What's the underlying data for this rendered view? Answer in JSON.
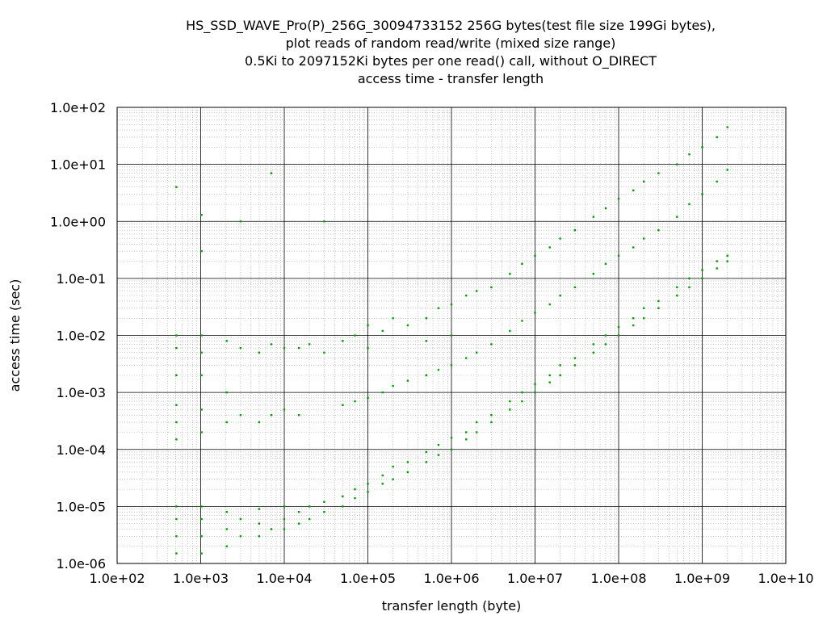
{
  "chart_data": {
    "type": "scatter",
    "title_lines": [
      "HS_SSD_WAVE_Pro(P)_256G_30094733152 256G bytes(test file size 199Gi bytes),",
      "plot reads of random read/write (mixed size range)",
      "0.5Ki to 2097152Ki bytes per one read() call, without O_DIRECT",
      "access time - transfer length"
    ],
    "xlabel": "transfer length (byte)",
    "ylabel": "access time (sec)",
    "xscale": "log",
    "yscale": "log",
    "xlim": [
      100,
      10000000000
    ],
    "ylim": [
      1e-06,
      100
    ],
    "x_ticks": [
      {
        "value": 100,
        "label": "1.0e+02"
      },
      {
        "value": 1000,
        "label": "1.0e+03"
      },
      {
        "value": 10000,
        "label": "1.0e+04"
      },
      {
        "value": 100000,
        "label": "1.0e+05"
      },
      {
        "value": 1000000,
        "label": "1.0e+06"
      },
      {
        "value": 10000000,
        "label": "1.0e+07"
      },
      {
        "value": 100000000,
        "label": "1.0e+08"
      },
      {
        "value": 1000000000,
        "label": "1.0e+09"
      },
      {
        "value": 10000000000,
        "label": "1.0e+10"
      }
    ],
    "y_ticks": [
      {
        "value": 1e-06,
        "label": "1.0e-06"
      },
      {
        "value": 1e-05,
        "label": "1.0e-05"
      },
      {
        "value": 0.0001,
        "label": "1.0e-04"
      },
      {
        "value": 0.001,
        "label": "1.0e-03"
      },
      {
        "value": 0.01,
        "label": "1.0e-02"
      },
      {
        "value": 0.1,
        "label": "1.0e-01"
      },
      {
        "value": 1,
        "label": "1.0e+00"
      },
      {
        "value": 10,
        "label": "1.0e+01"
      },
      {
        "value": 100,
        "label": "1.0e+02"
      }
    ],
    "grid": true,
    "minor_grid": true,
    "point_color": "#00a000",
    "series": [
      {
        "values": [
          [
            512,
            1.5e-06
          ],
          [
            512,
            3e-06
          ],
          [
            512,
            6e-06
          ],
          [
            512,
            1e-05
          ],
          [
            512,
            0.00015
          ],
          [
            512,
            0.0003
          ],
          [
            512,
            0.0006
          ],
          [
            512,
            0.002
          ],
          [
            512,
            0.006
          ],
          [
            512,
            0.01
          ],
          [
            512,
            4.0
          ],
          [
            1024,
            1.5e-06
          ],
          [
            1024,
            3e-06
          ],
          [
            1024,
            6e-06
          ],
          [
            1024,
            1e-05
          ],
          [
            1024,
            0.0002
          ],
          [
            1024,
            0.0005
          ],
          [
            1024,
            0.002
          ],
          [
            1024,
            0.005
          ],
          [
            1024,
            0.01
          ],
          [
            1024,
            1.3
          ],
          [
            1024,
            0.3
          ],
          [
            2048,
            2e-06
          ],
          [
            2048,
            4e-06
          ],
          [
            2048,
            8e-06
          ],
          [
            2048,
            0.0003
          ],
          [
            2048,
            0.001
          ],
          [
            2048,
            0.008
          ],
          [
            3000,
            3e-06
          ],
          [
            3000,
            6e-06
          ],
          [
            3000,
            0.0004
          ],
          [
            3000,
            0.006
          ],
          [
            3000,
            1.0
          ],
          [
            5000,
            3e-06
          ],
          [
            5000,
            5e-06
          ],
          [
            5000,
            9e-06
          ],
          [
            5000,
            0.0003
          ],
          [
            5000,
            0.005
          ],
          [
            7000,
            4e-06
          ],
          [
            7000,
            0.0004
          ],
          [
            7000,
            0.007
          ],
          [
            7000,
            7.0
          ],
          [
            10000,
            4e-06
          ],
          [
            10000,
            6e-06
          ],
          [
            10000,
            1e-05
          ],
          [
            10000,
            0.0005
          ],
          [
            10000,
            0.006
          ],
          [
            15000,
            5e-06
          ],
          [
            15000,
            8e-06
          ],
          [
            15000,
            0.006
          ],
          [
            15000,
            0.0004
          ],
          [
            20000,
            6e-06
          ],
          [
            20000,
            1e-05
          ],
          [
            20000,
            0.007
          ],
          [
            30000,
            8e-06
          ],
          [
            30000,
            1.2e-05
          ],
          [
            30000,
            0.005
          ],
          [
            30000,
            1.0
          ],
          [
            50000,
            1e-05
          ],
          [
            50000,
            1.5e-05
          ],
          [
            50000,
            0.0006
          ],
          [
            50000,
            0.008
          ],
          [
            70000,
            1.4e-05
          ],
          [
            70000,
            2e-05
          ],
          [
            70000,
            0.0007
          ],
          [
            70000,
            0.01
          ],
          [
            100000,
            1.8e-05
          ],
          [
            100000,
            2.5e-05
          ],
          [
            100000,
            0.0008
          ],
          [
            100000,
            0.015
          ],
          [
            100000,
            0.006
          ],
          [
            150000,
            2.5e-05
          ],
          [
            150000,
            3.5e-05
          ],
          [
            150000,
            0.001
          ],
          [
            150000,
            0.012
          ],
          [
            200000,
            3e-05
          ],
          [
            200000,
            5e-05
          ],
          [
            200000,
            0.0013
          ],
          [
            200000,
            0.02
          ],
          [
            300000,
            4e-05
          ],
          [
            300000,
            6e-05
          ],
          [
            300000,
            0.0016
          ],
          [
            300000,
            0.015
          ],
          [
            500000,
            6e-05
          ],
          [
            500000,
            9e-05
          ],
          [
            500000,
            0.002
          ],
          [
            500000,
            0.02
          ],
          [
            500000,
            0.008
          ],
          [
            700000,
            8e-05
          ],
          [
            700000,
            0.00012
          ],
          [
            700000,
            0.0025
          ],
          [
            700000,
            0.03
          ],
          [
            1000000,
            0.0001
          ],
          [
            1000000,
            0.00016
          ],
          [
            1000000,
            0.003
          ],
          [
            1000000,
            0.035
          ],
          [
            1000000,
            0.01
          ],
          [
            1500000,
            0.00015
          ],
          [
            1500000,
            0.0002
          ],
          [
            1500000,
            0.004
          ],
          [
            1500000,
            0.05
          ],
          [
            2000000,
            0.0002
          ],
          [
            2000000,
            0.0003
          ],
          [
            2000000,
            0.005
          ],
          [
            2000000,
            0.06
          ],
          [
            3000000,
            0.0003
          ],
          [
            3000000,
            0.0004
          ],
          [
            3000000,
            0.007
          ],
          [
            3000000,
            0.07
          ],
          [
            5000000,
            0.0005
          ],
          [
            5000000,
            0.0007
          ],
          [
            5000000,
            0.012
          ],
          [
            5000000,
            0.12
          ],
          [
            7000000,
            0.0007
          ],
          [
            7000000,
            0.001
          ],
          [
            7000000,
            0.018
          ],
          [
            7000000,
            0.18
          ],
          [
            10000000,
            0.001
          ],
          [
            10000000,
            0.0014
          ],
          [
            10000000,
            0.025
          ],
          [
            10000000,
            0.25
          ],
          [
            15000000,
            0.0015
          ],
          [
            15000000,
            0.002
          ],
          [
            15000000,
            0.035
          ],
          [
            15000000,
            0.35
          ],
          [
            20000000,
            0.002
          ],
          [
            20000000,
            0.003
          ],
          [
            20000000,
            0.05
          ],
          [
            20000000,
            0.5
          ],
          [
            30000000,
            0.003
          ],
          [
            30000000,
            0.004
          ],
          [
            30000000,
            0.07
          ],
          [
            30000000,
            0.7
          ],
          [
            50000000,
            0.005
          ],
          [
            50000000,
            0.007
          ],
          [
            50000000,
            0.12
          ],
          [
            50000000,
            1.2
          ],
          [
            70000000,
            0.007
          ],
          [
            70000000,
            0.01
          ],
          [
            70000000,
            0.18
          ],
          [
            70000000,
            1.7
          ],
          [
            100000000,
            0.01
          ],
          [
            100000000,
            0.014
          ],
          [
            100000000,
            0.25
          ],
          [
            100000000,
            2.5
          ],
          [
            150000000,
            0.015
          ],
          [
            150000000,
            0.02
          ],
          [
            150000000,
            0.35
          ],
          [
            150000000,
            3.5
          ],
          [
            200000000,
            0.02
          ],
          [
            200000000,
            0.03
          ],
          [
            200000000,
            0.5
          ],
          [
            200000000,
            5.0
          ],
          [
            300000000,
            0.03
          ],
          [
            300000000,
            0.04
          ],
          [
            300000000,
            0.7
          ],
          [
            300000000,
            7.0
          ],
          [
            500000000,
            0.05
          ],
          [
            500000000,
            0.07
          ],
          [
            500000000,
            1.2
          ],
          [
            500000000,
            10.0
          ],
          [
            700000000,
            0.07
          ],
          [
            700000000,
            0.1
          ],
          [
            700000000,
            2.0
          ],
          [
            700000000,
            15.0
          ],
          [
            1000000000,
            0.1
          ],
          [
            1000000000,
            0.14
          ],
          [
            1000000000,
            3.0
          ],
          [
            1000000000,
            20.0
          ],
          [
            1500000000,
            0.15
          ],
          [
            1500000000,
            0.2
          ],
          [
            1500000000,
            5.0
          ],
          [
            1500000000,
            30.0
          ],
          [
            2000000000,
            0.2
          ],
          [
            2000000000,
            0.25
          ],
          [
            2000000000,
            8.0
          ],
          [
            2000000000,
            45.0
          ]
        ]
      }
    ]
  }
}
